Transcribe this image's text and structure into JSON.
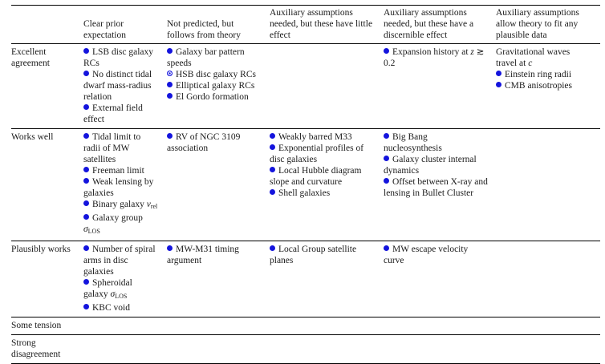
{
  "colors": {
    "bullet_blue": "#1414dd",
    "rule_black": "#000000",
    "text": "#1a1a1a",
    "background": "#ffffff"
  },
  "table": {
    "columns": [
      {
        "label": "Clear prior expectation"
      },
      {
        "label": "Not predicted, but follows from theory"
      },
      {
        "label": "Auxiliary assumptions needed, but these have little effect"
      },
      {
        "label": "Auxiliary assumptions needed, but these have a discernible effect"
      },
      {
        "label": "Auxiliary assumptions allow theory to fit any plausible data"
      }
    ],
    "bullet_legend": {
      "filled": "filled blue circle",
      "circled": "blue circle outline with central dot",
      "none": "no bullet shown"
    },
    "rows": [
      {
        "label": "Excellent agreement",
        "cells": [
          [
            {
              "bullet": "filled",
              "segments": [
                {
                  "text": "LSB disc galaxy RCs"
                }
              ]
            },
            {
              "bullet": "filled",
              "segments": [
                {
                  "text": "No distinct tidal dwarf mass-radius relation"
                }
              ]
            },
            {
              "bullet": "filled",
              "segments": [
                {
                  "text": "External field effect"
                }
              ]
            }
          ],
          [
            {
              "bullet": "filled",
              "segments": [
                {
                  "text": "Galaxy bar pattern speeds"
                }
              ]
            },
            {
              "bullet": "circled",
              "segments": [
                {
                  "text": "HSB disc galaxy RCs"
                }
              ]
            },
            {
              "bullet": "filled",
              "segments": [
                {
                  "text": "Elliptical galaxy RCs"
                }
              ]
            },
            {
              "bullet": "filled",
              "segments": [
                {
                  "text": "El Gordo formation"
                }
              ]
            }
          ],
          [],
          [
            {
              "bullet": "filled",
              "segments": [
                {
                  "text": "Expansion history at "
                },
                {
                  "text": "z",
                  "style": "italic"
                },
                {
                  "text": " ≳ 0.2"
                }
              ]
            }
          ],
          [
            {
              "bullet": "none",
              "segments": [
                {
                  "text": "Gravitational waves travel at "
                },
                {
                  "text": "c",
                  "style": "italic"
                }
              ]
            },
            {
              "bullet": "filled",
              "segments": [
                {
                  "text": "Einstein ring radii"
                }
              ]
            },
            {
              "bullet": "filled",
              "segments": [
                {
                  "text": "CMB anisotropies"
                }
              ]
            }
          ]
        ]
      },
      {
        "label": "Works well",
        "cells": [
          [
            {
              "bullet": "filled",
              "segments": [
                {
                  "text": "Tidal limit to radii of MW satellites"
                }
              ]
            },
            {
              "bullet": "filled",
              "segments": [
                {
                  "text": "Freeman limit"
                }
              ]
            },
            {
              "bullet": "filled",
              "segments": [
                {
                  "text": "Weak lensing by galaxies"
                }
              ]
            },
            {
              "bullet": "filled",
              "segments": [
                {
                  "text": "Binary galaxy "
                },
                {
                  "text": "v",
                  "style": "italic"
                },
                {
                  "text": "rel",
                  "style": "sub"
                }
              ]
            },
            {
              "bullet": "filled",
              "segments": [
                {
                  "text": "Galaxy group "
                },
                {
                  "text": "σ",
                  "style": "italic"
                },
                {
                  "text": "LOS",
                  "style": "sub"
                }
              ]
            }
          ],
          [
            {
              "bullet": "filled",
              "segments": [
                {
                  "text": "RV of NGC 3109 association"
                }
              ]
            }
          ],
          [
            {
              "bullet": "filled",
              "segments": [
                {
                  "text": "Weakly barred M33"
                }
              ]
            },
            {
              "bullet": "filled",
              "segments": [
                {
                  "text": "Exponential profiles of disc galaxies"
                }
              ]
            },
            {
              "bullet": "filled",
              "segments": [
                {
                  "text": "Local Hubble diagram slope and curvature"
                }
              ]
            },
            {
              "bullet": "filled",
              "segments": [
                {
                  "text": "Shell galaxies"
                }
              ]
            }
          ],
          [
            {
              "bullet": "filled",
              "segments": [
                {
                  "text": "Big Bang nucleosynthesis"
                }
              ]
            },
            {
              "bullet": "filled",
              "segments": [
                {
                  "text": "Galaxy cluster internal dynamics"
                }
              ]
            },
            {
              "bullet": "filled",
              "segments": [
                {
                  "text": "Offset between X-ray and lensing in Bullet Cluster"
                }
              ]
            }
          ],
          []
        ]
      },
      {
        "label": "Plausibly works",
        "cells": [
          [
            {
              "bullet": "filled",
              "segments": [
                {
                  "text": "Number of spiral arms in disc galaxies"
                }
              ]
            },
            {
              "bullet": "filled",
              "segments": [
                {
                  "text": "Spheroidal galaxy "
                },
                {
                  "text": "σ",
                  "style": "italic"
                },
                {
                  "text": "LOS",
                  "style": "sub"
                }
              ]
            },
            {
              "bullet": "filled",
              "segments": [
                {
                  "text": "KBC void"
                }
              ]
            }
          ],
          [
            {
              "bullet": "filled",
              "segments": [
                {
                  "text": "MW-M31 timing argument"
                }
              ]
            }
          ],
          [
            {
              "bullet": "filled",
              "segments": [
                {
                  "text": "Local Group satellite planes"
                }
              ]
            }
          ],
          [
            {
              "bullet": "filled",
              "segments": [
                {
                  "text": "MW escape velocity curve"
                }
              ]
            }
          ],
          []
        ]
      },
      {
        "label": "Some tension",
        "cells": [
          [],
          [],
          [],
          [],
          []
        ]
      },
      {
        "label": "Strong disagreement",
        "cells": [
          [],
          [],
          [],
          [],
          []
        ]
      }
    ]
  }
}
